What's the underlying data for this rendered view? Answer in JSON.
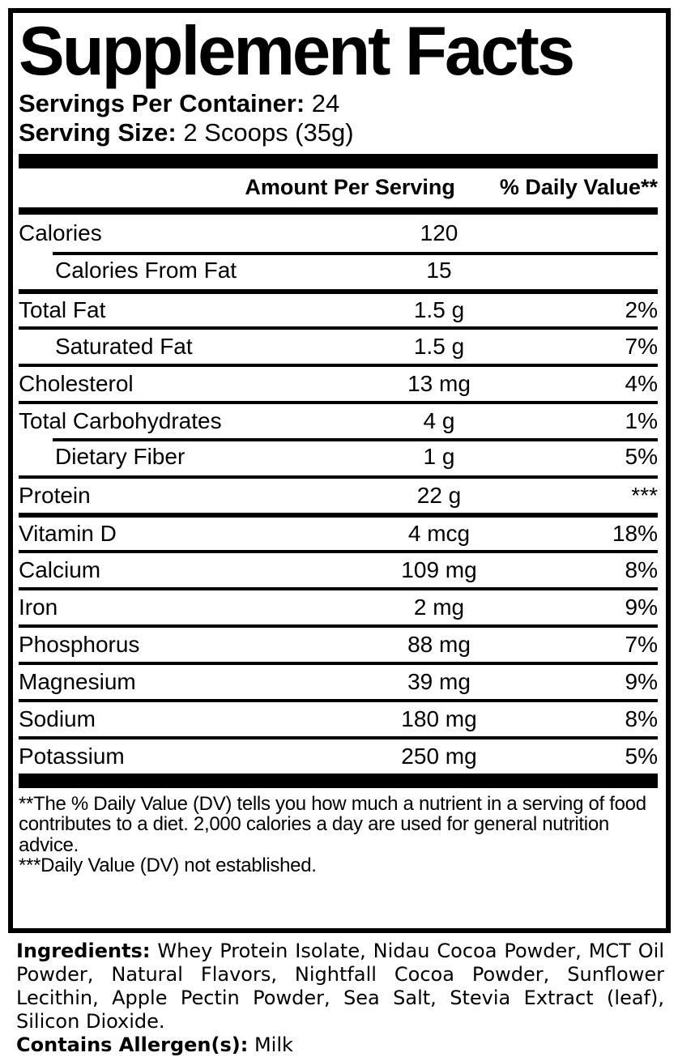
{
  "title": "Supplement Facts",
  "servings_per_container": {
    "label": "Servings Per Container:",
    "value": "24"
  },
  "serving_size": {
    "label": "Serving Size:",
    "value": "2 Scoops (35g)"
  },
  "table": {
    "headers": {
      "amount": "Amount Per Serving",
      "daily_value": "% Daily Value**"
    },
    "rows": [
      {
        "name": "Calories",
        "amount": "120",
        "dv": "",
        "indent": false,
        "divider": "none"
      },
      {
        "name": "Calories From Fat",
        "amount": "15",
        "dv": "",
        "indent": true,
        "divider": "indented"
      },
      {
        "name": "Total Fat",
        "amount": "1.5 g",
        "dv": "2%",
        "indent": false,
        "divider": "heavy"
      },
      {
        "name": "Saturated Fat",
        "amount": "1.5 g",
        "dv": "7%",
        "indent": true,
        "divider": "full"
      },
      {
        "name": "Cholesterol",
        "amount": "13 mg",
        "dv": "4%",
        "indent": false,
        "divider": "full"
      },
      {
        "name": "Total Carbohydrates",
        "amount": "4 g",
        "dv": "1%",
        "indent": false,
        "divider": "full"
      },
      {
        "name": "Dietary Fiber",
        "amount": "1 g",
        "dv": "5%",
        "indent": true,
        "divider": "indented"
      },
      {
        "name": "Protein",
        "amount": "22 g",
        "dv": "***",
        "indent": false,
        "divider": "full"
      },
      {
        "name": "Vitamin D",
        "amount": "4 mcg",
        "dv": "18%",
        "indent": false,
        "divider": "heavy"
      },
      {
        "name": "Calcium",
        "amount": "109 mg",
        "dv": "8%",
        "indent": false,
        "divider": "full"
      },
      {
        "name": "Iron",
        "amount": "2 mg",
        "dv": "9%",
        "indent": false,
        "divider": "full"
      },
      {
        "name": "Phosphorus",
        "amount": "88 mg",
        "dv": "7%",
        "indent": false,
        "divider": "full"
      },
      {
        "name": "Magnesium",
        "amount": "39 mg",
        "dv": "9%",
        "indent": false,
        "divider": "full"
      },
      {
        "name": "Sodium",
        "amount": "180 mg",
        "dv": "8%",
        "indent": false,
        "divider": "full"
      },
      {
        "name": "Potassium",
        "amount": "250 mg",
        "dv": "5%",
        "indent": false,
        "divider": "full"
      }
    ]
  },
  "footnotes": {
    "daily_value_note": "**The % Daily Value (DV) tells you how much a nutrient in a serving of food contributes to a diet. 2,000 calories a day are used for general nutrition advice.",
    "not_established_note": "***Daily Value (DV) not established."
  },
  "ingredients": {
    "label": "Ingredients:",
    "text": "Whey Protein Isolate, Nidau Cocoa Powder, MCT Oil Powder, Natural Flavors, Nightfall Cocoa Powder, Sunflower Lecithin, Apple Pectin Powder, Sea Salt, Stevia Extract (leaf), Silicon Dioxide."
  },
  "allergens": {
    "label": "Contains Allergen(s):",
    "value": "Milk"
  },
  "colors": {
    "text": "#000000",
    "background": "#ffffff"
  }
}
